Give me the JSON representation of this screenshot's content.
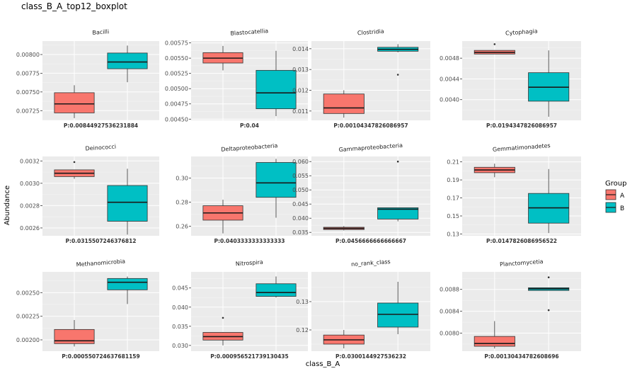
{
  "chart_data": {
    "type": "boxplot",
    "title": "class_B_A_top12_boxplot",
    "xlabel": "class_B_A",
    "ylabel": "Abundance",
    "legend": {
      "title": "Group",
      "placement": "right",
      "entries": [
        {
          "label": "A",
          "color": "#F8766D"
        },
        {
          "label": "B",
          "color": "#00BFC4"
        }
      ]
    },
    "facets": [
      {
        "name": "Bacilli",
        "pvalue": "P:0.00844927536231884",
        "ylim": [
          0.00712,
          0.00818
        ],
        "ticks": [
          "0.00725",
          "0.00750",
          "0.00775",
          "0.00800"
        ],
        "groups": [
          {
            "name": "A",
            "min": 0.00715,
            "q1": 0.00722,
            "median": 0.00734,
            "q3": 0.00749,
            "max": 0.00759,
            "outliers": []
          },
          {
            "name": "B",
            "min": 0.00763,
            "q1": 0.00781,
            "median": 0.0079,
            "q3": 0.00802,
            "max": 0.00812,
            "outliers": []
          }
        ]
      },
      {
        "name": "Blastocatellia",
        "pvalue": "P:0.04",
        "ylim": [
          0.00448,
          0.00578
        ],
        "ticks": [
          "0.00450",
          "0.00475",
          "0.00500",
          "0.00525",
          "0.00550",
          "0.00575"
        ],
        "groups": [
          {
            "name": "A",
            "min": 0.0053,
            "q1": 0.00542,
            "median": 0.0055,
            "q3": 0.00559,
            "max": 0.0057,
            "outliers": []
          },
          {
            "name": "B",
            "min": 0.00455,
            "q1": 0.00467,
            "median": 0.00493,
            "q3": 0.0053,
            "max": 0.00562,
            "outliers": []
          }
        ]
      },
      {
        "name": "Clostridia",
        "pvalue": "P:0.00104347826086957",
        "ylim": [
          0.01055,
          0.01437
        ],
        "ticks": [
          "0.011",
          "0.012",
          "0.013",
          "0.014"
        ],
        "groups": [
          {
            "name": "A",
            "min": 0.01068,
            "q1": 0.01088,
            "median": 0.01115,
            "q3": 0.01182,
            "max": 0.012,
            "outliers": []
          },
          {
            "name": "B",
            "min": 0.01383,
            "q1": 0.01388,
            "median": 0.01397,
            "q3": 0.01407,
            "max": 0.01422,
            "outliers": [
              0.01275
            ]
          }
        ]
      },
      {
        "name": "Cytophagia",
        "pvalue": "P:0.0194347826086957",
        "ylim": [
          0.0036,
          0.00513
        ],
        "ticks": [
          "0.0040",
          "0.0044",
          "0.0048"
        ],
        "groups": [
          {
            "name": "A",
            "min": 0.00488,
            "q1": 0.00488,
            "median": 0.00491,
            "q3": 0.00495,
            "max": 0.00495,
            "outliers": [
              0.00507
            ]
          },
          {
            "name": "B",
            "min": 0.00367,
            "q1": 0.00397,
            "median": 0.00424,
            "q3": 0.00452,
            "max": 0.00495,
            "outliers": []
          }
        ]
      },
      {
        "name": "Deinococci",
        "pvalue": "P:0.0315507246376812",
        "ylim": [
          0.00253,
          0.00324
        ],
        "ticks": [
          "0.0026",
          "0.0028",
          "0.0030",
          "0.0032"
        ],
        "groups": [
          {
            "name": "A",
            "min": 0.00304,
            "q1": 0.00306,
            "median": 0.00309,
            "q3": 0.00312,
            "max": 0.00312,
            "outliers": [
              0.00319
            ]
          },
          {
            "name": "B",
            "min": 0.00254,
            "q1": 0.00266,
            "median": 0.00283,
            "q3": 0.00298,
            "max": 0.00313,
            "outliers": []
          }
        ]
      },
      {
        "name": "Deltaproteobacteria",
        "pvalue": "P:0.0403333333333333",
        "ylim": [
          0.252,
          0.318
        ],
        "ticks": [
          "0.26",
          "0.28",
          "0.30"
        ],
        "groups": [
          {
            "name": "A",
            "min": 0.254,
            "q1": 0.265,
            "median": 0.271,
            "q3": 0.277,
            "max": 0.282,
            "outliers": []
          },
          {
            "name": "B",
            "min": 0.267,
            "q1": 0.284,
            "median": 0.296,
            "q3": 0.313,
            "max": 0.316,
            "outliers": []
          }
        ]
      },
      {
        "name": "Gammaproteobacteria",
        "pvalue": "P:0.0456666666666667",
        "ylim": [
          0.0338,
          0.0618
        ],
        "ticks": [
          "0.035",
          "0.040",
          "0.045",
          "0.050",
          "0.055",
          "0.060"
        ],
        "groups": [
          {
            "name": "A",
            "min": 0.0357,
            "q1": 0.036,
            "median": 0.0364,
            "q3": 0.0368,
            "max": 0.0372,
            "outliers": []
          },
          {
            "name": "B",
            "min": 0.0389,
            "q1": 0.0397,
            "median": 0.0432,
            "q3": 0.0437,
            "max": 0.0437,
            "outliers": [
              0.06
            ]
          }
        ]
      },
      {
        "name": "Gemmatimonadetes",
        "pvalue": "P:0.0147826086956522",
        "ylim": [
          0.128,
          0.216
        ],
        "ticks": [
          "0.13",
          "0.15",
          "0.17",
          "0.19",
          "0.21"
        ],
        "groups": [
          {
            "name": "A",
            "min": 0.193,
            "q1": 0.198,
            "median": 0.201,
            "q3": 0.204,
            "max": 0.208,
            "outliers": []
          },
          {
            "name": "B",
            "min": 0.131,
            "q1": 0.142,
            "median": 0.159,
            "q3": 0.175,
            "max": 0.202,
            "outliers": []
          }
        ]
      },
      {
        "name": "Methanomicrobia",
        "pvalue": "P:0.000550724637681159",
        "ylim": [
          0.00188,
          0.00272
        ],
        "ticks": [
          "0.00200",
          "0.00225",
          "0.00250"
        ],
        "groups": [
          {
            "name": "A",
            "min": 0.00193,
            "q1": 0.00196,
            "median": 0.00199,
            "q3": 0.00211,
            "max": 0.00221,
            "outliers": []
          },
          {
            "name": "B",
            "min": 0.00238,
            "q1": 0.00253,
            "median": 0.00261,
            "q3": 0.00265,
            "max": 0.00267,
            "outliers": []
          }
        ]
      },
      {
        "name": "Nitrospira",
        "pvalue": "P:0.000956521739130435",
        "ylim": [
          0.0285,
          0.0492
        ],
        "ticks": [
          "0.030",
          "0.035",
          "0.040",
          "0.045"
        ],
        "groups": [
          {
            "name": "A",
            "min": 0.03,
            "q1": 0.0314,
            "median": 0.0323,
            "q3": 0.0334,
            "max": 0.0335,
            "outliers": [
              0.0372
            ]
          },
          {
            "name": "B",
            "min": 0.0425,
            "q1": 0.0428,
            "median": 0.0438,
            "q3": 0.0461,
            "max": 0.048,
            "outliers": []
          }
        ]
      },
      {
        "name": "no_rank_class",
        "pvalue": "P:0.0300144927536232",
        "ylim": [
          0.1125,
          0.1405
        ],
        "ticks": [
          "0.12",
          "0.13"
        ],
        "groups": [
          {
            "name": "A",
            "min": 0.1135,
            "q1": 0.115,
            "median": 0.1165,
            "q3": 0.1182,
            "max": 0.12,
            "outliers": []
          },
          {
            "name": "B",
            "min": 0.1185,
            "q1": 0.121,
            "median": 0.1255,
            "q3": 0.1295,
            "max": 0.137,
            "outliers": []
          }
        ]
      },
      {
        "name": "Planctomycetia",
        "pvalue": "P:0.00130434782608696",
        "ylim": [
          0.00767,
          0.00912
        ],
        "ticks": [
          "0.0080",
          "0.0084",
          "0.0088"
        ],
        "groups": [
          {
            "name": "A",
            "min": 0.00772,
            "q1": 0.00776,
            "median": 0.00781,
            "q3": 0.00794,
            "max": 0.00822,
            "outliers": []
          },
          {
            "name": "B",
            "min": 0.00878,
            "q1": 0.00878,
            "median": 0.00881,
            "q3": 0.00883,
            "max": 0.00883,
            "outliers": [
              0.00842,
              0.00902
            ]
          }
        ]
      }
    ]
  }
}
